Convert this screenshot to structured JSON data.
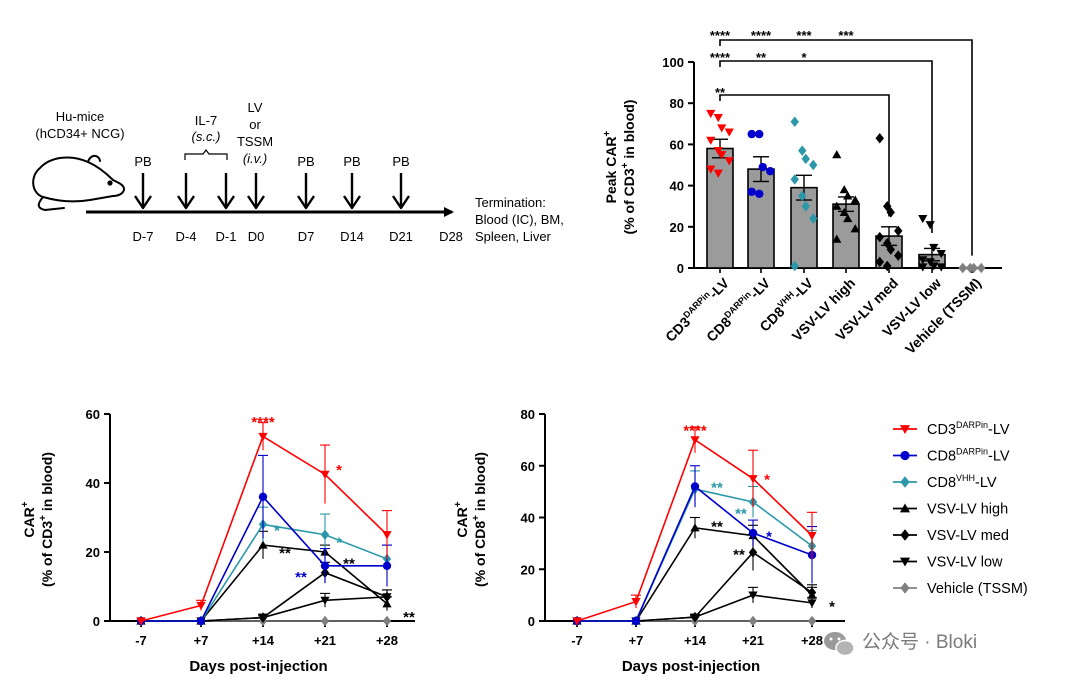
{
  "schematic": {
    "host_line1": "Hu-mice",
    "host_line2": "(hCD34+ NCG)",
    "il7_label": "IL-7",
    "il7_route": "(s.c.)",
    "lv_label": "LV",
    "or_label": "or",
    "tssm_label": "TSSM",
    "lv_route": "(i.v.)",
    "pb_label": "PB",
    "days": [
      "D-7",
      "D-4",
      "D-1",
      "D0",
      "D7",
      "D14",
      "D21",
      "D28"
    ],
    "termination_line1": "Termination:",
    "termination_line2": "Blood (IC), BM,",
    "termination_line3": "Spleen, Liver"
  },
  "legend": {
    "items": [
      {
        "base": "CD3",
        "sup": "DARPin",
        "suffix": "-LV",
        "color": "#ff0000",
        "marker": "triangle-down"
      },
      {
        "base": "CD8",
        "sup": "DARPin",
        "suffix": "-LV",
        "color": "#0000cc",
        "marker": "circle"
      },
      {
        "base": "CD8",
        "sup": "VHH",
        "suffix": "-LV",
        "color": "#2a98a8",
        "marker": "diamond"
      },
      {
        "base": "VSV-LV high",
        "sup": "",
        "suffix": "",
        "color": "#000000",
        "marker": "triangle-up"
      },
      {
        "base": "VSV-LV med",
        "sup": "",
        "suffix": "",
        "color": "#000000",
        "marker": "diamond"
      },
      {
        "base": "VSV-LV low",
        "sup": "",
        "suffix": "",
        "color": "#000000",
        "marker": "triangle-down"
      },
      {
        "base": "Vehicle (TSSM)",
        "sup": "",
        "suffix": "",
        "color": "#808080",
        "marker": "diamond"
      }
    ]
  },
  "watermark": "公众号 · Bloki",
  "chart_data": [
    {
      "type": "bar",
      "title": "",
      "ylabel_line1": "Peak CAR",
      "ylabel_sup1": "+",
      "ylabel_line2_pre": "(% of CD3",
      "ylabel_sup2": "+",
      "ylabel_line2_post": " in blood)",
      "ylim": [
        0,
        100
      ],
      "yticks": [
        "0",
        "20",
        "40",
        "60",
        "80",
        "100"
      ],
      "categories": [
        {
          "base": "CD3",
          "sup": "DARPin",
          "suffix": "-LV"
        },
        {
          "base": "CD8",
          "sup": "DARPin",
          "suffix": "-LV"
        },
        {
          "base": "CD8",
          "sup": "VHH",
          "suffix": "-LV"
        },
        {
          "base": "VSV-LV high",
          "sup": "",
          "suffix": ""
        },
        {
          "base": "VSV-LV med",
          "sup": "",
          "suffix": ""
        },
        {
          "base": "VSV-LV low",
          "sup": "",
          "suffix": ""
        },
        {
          "base": "Vehicle (TSSM)",
          "sup": "",
          "suffix": ""
        }
      ],
      "values": [
        58,
        48,
        39,
        31,
        15.5,
        6.5,
        0
      ],
      "errors": [
        4.5,
        6,
        6,
        3.5,
        4.5,
        3,
        0
      ],
      "point_colors": [
        "#ff0000",
        "#0000cc",
        "#2a98a8",
        "#000000",
        "#000000",
        "#000000",
        "#808080"
      ],
      "point_markers": [
        "triangle-down",
        "circle",
        "diamond",
        "triangle-up",
        "diamond",
        "triangle-down",
        "diamond"
      ],
      "points": [
        [
          75,
          73,
          68,
          66,
          62,
          57,
          55,
          52,
          48,
          46
        ],
        [
          65,
          65,
          49,
          47,
          37,
          36
        ],
        [
          71,
          57,
          53,
          50,
          43,
          35,
          30,
          24,
          1
        ],
        [
          55,
          38,
          35,
          33,
          30,
          27,
          24,
          19,
          14
        ],
        [
          63,
          30,
          27,
          18,
          15,
          12,
          9,
          6,
          3,
          1
        ],
        [
          24,
          21,
          10,
          7,
          4,
          3,
          1,
          0.5,
          0.5
        ],
        [
          0,
          0,
          0,
          0,
          0
        ]
      ],
      "brackets": [
        {
          "from": 0,
          "to": 6,
          "level": "top",
          "stars": [
            "****",
            "****",
            "***",
            "***"
          ],
          "star_cols": [
            0,
            1,
            2,
            3
          ]
        },
        {
          "from": 0,
          "to": 5,
          "level": "mid",
          "stars": [
            "****",
            "**",
            "*"
          ],
          "star_cols": [
            0,
            1,
            2
          ]
        },
        {
          "from": 0,
          "to": 4,
          "level": "low",
          "stars": [
            "**"
          ],
          "star_cols": [
            0
          ]
        }
      ]
    },
    {
      "type": "line",
      "title": "",
      "ylabel_line1": "CAR",
      "ylabel_sup1": "+",
      "ylabel_line2_pre": "(% of CD3",
      "ylabel_sup2": "+",
      "ylabel_line2_post": " in blood)",
      "xlabel": "Days post-injection",
      "x": [
        "-7",
        "+7",
        "+14",
        "+21",
        "+28"
      ],
      "ylim": [
        0,
        60
      ],
      "yticks": [
        "0",
        "20",
        "40",
        "60"
      ],
      "series": [
        {
          "name": "CD3DARPin-LV",
          "values": [
            0,
            4.5,
            53.5,
            42.5,
            25
          ],
          "errors": [
            0,
            1.5,
            4,
            8.5,
            7
          ],
          "color": "#ff0000",
          "marker": "triangle-down"
        },
        {
          "name": "CD8DARPin-LV",
          "values": [
            0,
            0,
            36,
            16,
            16
          ],
          "errors": [
            0,
            0,
            12,
            5,
            6
          ],
          "color": "#0000cc",
          "marker": "circle"
        },
        {
          "name": "CD8VHH-LV",
          "values": [
            0,
            0,
            28,
            25,
            18
          ],
          "errors": [
            0,
            0,
            5,
            6,
            4
          ],
          "color": "#2a98a8",
          "marker": "diamond"
        },
        {
          "name": "VSV-LV high",
          "values": [
            0,
            0,
            22,
            20,
            5
          ],
          "errors": [
            0,
            0,
            4,
            2,
            2
          ],
          "color": "#000000",
          "marker": "triangle-up"
        },
        {
          "name": "VSV-LV med",
          "values": [
            0,
            0,
            1,
            14,
            7
          ],
          "errors": [
            0,
            0,
            1,
            3,
            2
          ],
          "color": "#000000",
          "marker": "diamond"
        },
        {
          "name": "VSV-LV low",
          "values": [
            0,
            0,
            1,
            6,
            7
          ],
          "errors": [
            0,
            0,
            0.5,
            2,
            2
          ],
          "color": "#000000",
          "marker": "triangle-down"
        },
        {
          "name": "Vehicle (TSSM)",
          "values": [
            0,
            0,
            0,
            0,
            0
          ],
          "errors": [
            0,
            0,
            0,
            0,
            0
          ],
          "color": "#808080",
          "marker": "diamond"
        }
      ],
      "annotations": [
        {
          "text": "****",
          "color": "#ff0000",
          "x_index": 2,
          "y": 58,
          "dx": 0
        },
        {
          "text": "*",
          "color": "#ff0000",
          "x_index": 3,
          "y": 44,
          "dx": 14
        },
        {
          "text": "*",
          "color": "#2a98a8",
          "x_index": 2,
          "y": 26.5,
          "dx": 14
        },
        {
          "text": "**",
          "color": "#000000",
          "x_index": 2,
          "y": 20,
          "dx": 22
        },
        {
          "text": "*",
          "color": "#2a98a8",
          "x_index": 3,
          "y": 23,
          "dx": 14
        },
        {
          "text": "**",
          "color": "#000000",
          "x_index": 3,
          "y": 17,
          "dx": 24
        },
        {
          "text": "**",
          "color": "#0000cc",
          "x_index": 3,
          "y": 13,
          "dx": -24
        },
        {
          "text": "**",
          "color": "#000000",
          "x_index": 4,
          "y": 1.5,
          "dx": 22
        }
      ]
    },
    {
      "type": "line",
      "title": "",
      "ylabel_line1": "CAR",
      "ylabel_sup1": "+",
      "ylabel_line2_pre": "(% of CD8",
      "ylabel_sup2": "+",
      "ylabel_line2_post": " in blood)",
      "xlabel": "Days post-injection",
      "x": [
        "-7",
        "+7",
        "+14",
        "+21",
        "+28"
      ],
      "ylim": [
        0,
        80
      ],
      "yticks": [
        "0",
        "20",
        "40",
        "60",
        "80"
      ],
      "series": [
        {
          "name": "CD3DARPin-LV",
          "values": [
            0,
            7.5,
            70,
            55,
            33
          ],
          "errors": [
            0,
            2.5,
            5,
            11,
            9
          ],
          "color": "#ff0000",
          "marker": "triangle-down"
        },
        {
          "name": "CD8DARPin-LV",
          "values": [
            0,
            0,
            52,
            34,
            25.5
          ],
          "errors": [
            0,
            0,
            8,
            5,
            11
          ],
          "color": "#0000cc",
          "marker": "circle"
        },
        {
          "name": "CD8VHH-LV",
          "values": [
            0,
            0,
            51,
            46,
            29
          ],
          "errors": [
            0,
            0,
            7,
            6,
            6
          ],
          "color": "#2a98a8",
          "marker": "diamond"
        },
        {
          "name": "VSV-LV high",
          "values": [
            0,
            0,
            36,
            33,
            10
          ],
          "errors": [
            0,
            0,
            4,
            4,
            3
          ],
          "color": "#000000",
          "marker": "triangle-up"
        },
        {
          "name": "VSV-LV med",
          "values": [
            0,
            0,
            1.5,
            26.5,
            11
          ],
          "errors": [
            0,
            0,
            1,
            7,
            3
          ],
          "color": "#000000",
          "marker": "diamond"
        },
        {
          "name": "VSV-LV low",
          "values": [
            0,
            0,
            1.5,
            10,
            7
          ],
          "errors": [
            0,
            0,
            0.5,
            3,
            2
          ],
          "color": "#000000",
          "marker": "triangle-down"
        },
        {
          "name": "Vehicle (TSSM)",
          "values": [
            0,
            0,
            0,
            0,
            0
          ],
          "errors": [
            0,
            0,
            0,
            0,
            0
          ],
          "color": "#808080",
          "marker": "diamond"
        }
      ],
      "annotations": [
        {
          "text": "****",
          "color": "#ff0000",
          "x_index": 2,
          "y": 74,
          "dx": 0
        },
        {
          "text": "*",
          "color": "#ff0000",
          "x_index": 3,
          "y": 55,
          "dx": 14
        },
        {
          "text": "**",
          "color": "#2a98a8",
          "x_index": 2,
          "y": 52,
          "dx": 22
        },
        {
          "text": "**",
          "color": "#000000",
          "x_index": 2,
          "y": 37,
          "dx": 22
        },
        {
          "text": "**",
          "color": "#2a98a8",
          "x_index": 3,
          "y": 42,
          "dx": -12
        },
        {
          "text": "*",
          "color": "#0000cc",
          "x_index": 3,
          "y": 33,
          "dx": 16
        },
        {
          "text": "**",
          "color": "#000000",
          "x_index": 3,
          "y": 26,
          "dx": -14
        },
        {
          "text": "*",
          "color": "#000000",
          "x_index": 4,
          "y": 6,
          "dx": 20
        }
      ]
    }
  ]
}
